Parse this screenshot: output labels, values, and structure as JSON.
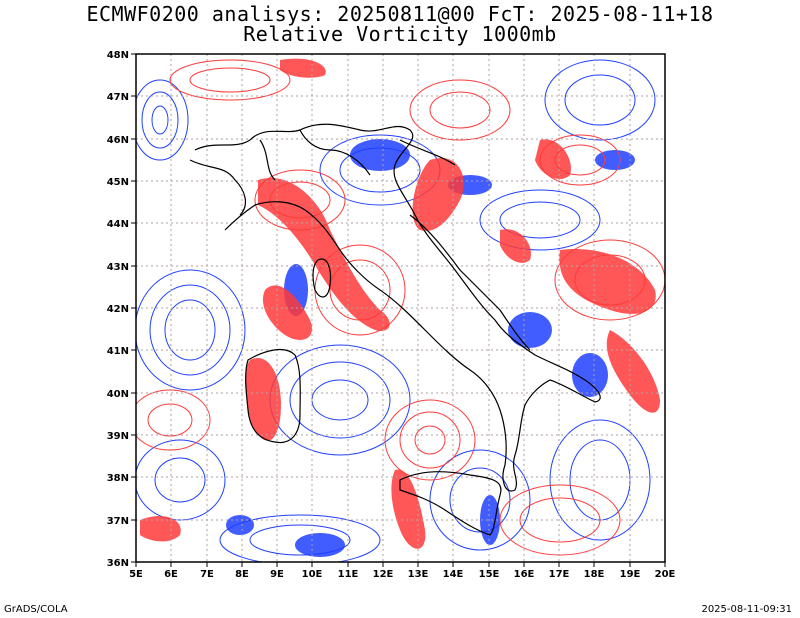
{
  "title_line1": "ECMWF0200 analisys: 20250811@00 FcT: 2025-08-11+18",
  "title_line2": "Relative Vorticity 1000mb",
  "footer_left": "GrADS/COLA",
  "footer_right": "2025-08-11-09:31",
  "lon_labels": [
    "5E",
    "6E",
    "7E",
    "8E",
    "9E",
    "10E",
    "11E",
    "12E",
    "13E",
    "14E",
    "15E",
    "16E",
    "17E",
    "18E",
    "19E",
    "20E"
  ],
  "lat_labels": [
    "36N",
    "37N",
    "38N",
    "39N",
    "40N",
    "41N",
    "42N",
    "43N",
    "44N",
    "45N",
    "46N",
    "47N",
    "48N"
  ],
  "colors": {
    "positive": "#ff3a3a",
    "negative": "#2040ff",
    "coast": "#000000",
    "grid": "#b0a0a0"
  }
}
